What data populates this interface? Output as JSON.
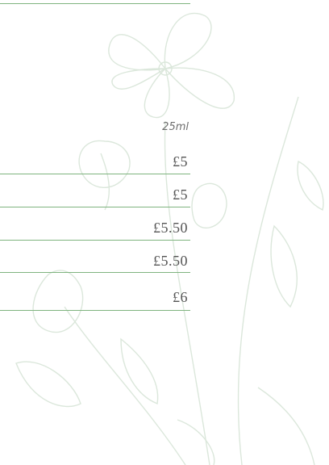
{
  "column_header": "25ml",
  "prices": [
    "£5",
    "£5",
    "£5.50",
    "£5.50",
    "£6"
  ]
}
